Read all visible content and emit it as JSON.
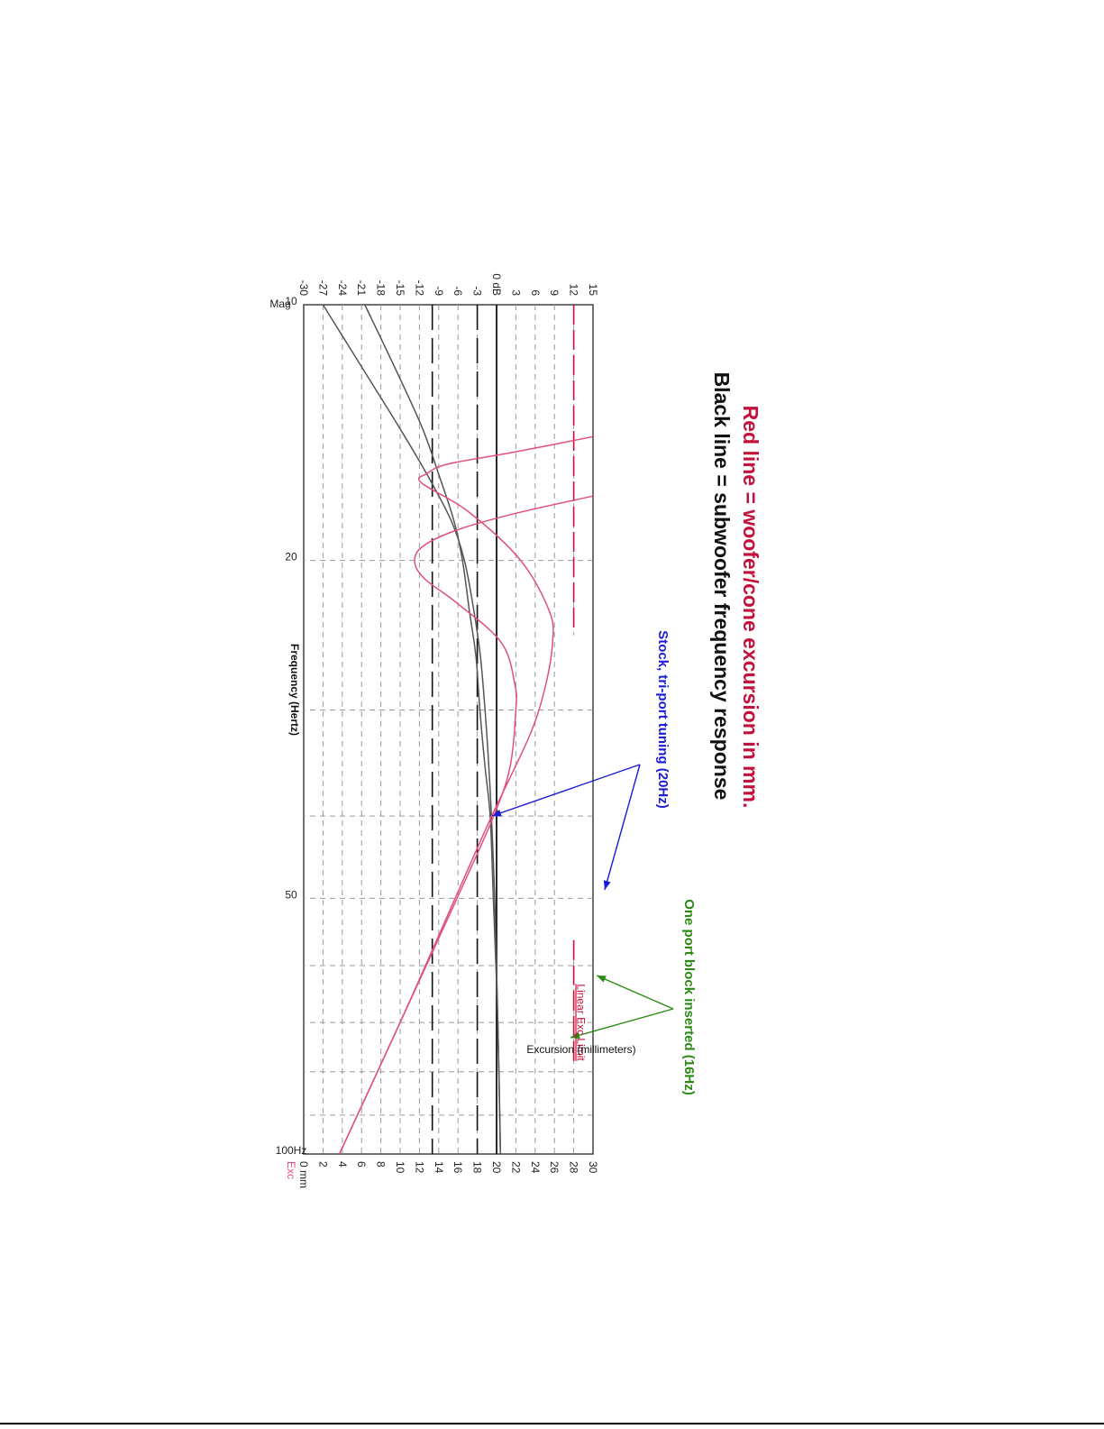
{
  "chart_data": {
    "type": "line",
    "frequency_axis": {
      "label": "Frequency (Hertz)",
      "scale": "log",
      "range": [
        10,
        100
      ],
      "tick_values": [
        10,
        20,
        50,
        100
      ],
      "tick_labels": [
        "10",
        "20",
        "50",
        "100Hz"
      ]
    },
    "magnitude_axis": {
      "range": [
        -30,
        15
      ],
      "unit_label": "Mag",
      "tick_values": [
        15,
        12,
        9,
        6,
        3,
        0,
        -3,
        -6,
        -9,
        -12,
        -15,
        -18,
        -21,
        -24,
        -27,
        -30
      ],
      "tick_labels": [
        "15",
        "12",
        "9",
        "6",
        "3",
        "0 dB",
        "-3",
        "-6",
        "-9",
        "-12",
        "-15",
        "-18",
        "-21",
        "-24",
        "-27",
        "-30"
      ]
    },
    "excursion_axis": {
      "label": "Excursion (millimeters)",
      "range": [
        0,
        30
      ],
      "unit_label": "Exc",
      "tick_values": [
        30,
        28,
        26,
        24,
        22,
        20,
        18,
        16,
        14,
        12,
        10,
        8,
        6,
        4,
        2,
        0
      ],
      "tick_labels": [
        "30",
        "28",
        "26",
        "24",
        "22",
        "20",
        "18",
        "16",
        "14",
        "12",
        "10",
        "8",
        "6",
        "4",
        "2",
        "0 mm"
      ]
    },
    "limit_line": {
      "label": "Linear Exc Limit",
      "excursion": 28
    },
    "reference_lines_db": [
      0,
      -3,
      -10
    ],
    "series": [
      {
        "axis": "magnitude",
        "color": "#555555",
        "points": [
          [
            10,
            -27
          ],
          [
            12,
            -20.5
          ],
          [
            14,
            -15
          ],
          [
            16,
            -10.5
          ],
          [
            18,
            -7
          ],
          [
            20,
            -5
          ],
          [
            23,
            -3.5
          ],
          [
            26,
            -2.5
          ],
          [
            30,
            -1.8
          ],
          [
            35,
            -1.2
          ],
          [
            40,
            -0.8
          ],
          [
            50,
            -0.3
          ],
          [
            70,
            0.2
          ],
          [
            100,
            0.6
          ]
        ]
      },
      {
        "axis": "magnitude",
        "color": "#555555",
        "points": [
          [
            10,
            -20.5
          ],
          [
            12,
            -15.5
          ],
          [
            14,
            -11.5
          ],
          [
            16,
            -8.8
          ],
          [
            18,
            -6.6
          ],
          [
            20,
            -5.3
          ],
          [
            23,
            -4.2
          ],
          [
            26,
            -3.2
          ],
          [
            30,
            -2.6
          ],
          [
            35,
            -1.8
          ],
          [
            40,
            -1
          ],
          [
            50,
            -0.5
          ],
          [
            70,
            0.2
          ],
          [
            100,
            0.6
          ]
        ]
      },
      {
        "axis": "excursion",
        "color": "#e0507a",
        "points": [
          [
            14.3,
            30
          ],
          [
            14.9,
            22
          ],
          [
            15.4,
            15
          ],
          [
            15.8,
            12.8
          ],
          [
            16.2,
            12.2
          ],
          [
            17.5,
            17
          ],
          [
            20,
            22.5
          ],
          [
            23,
            25.5
          ],
          [
            25,
            25.8
          ],
          [
            28,
            25.1
          ],
          [
            32,
            23.5
          ],
          [
            40,
            19.5
          ],
          [
            50,
            15.7
          ],
          [
            70,
            10
          ],
          [
            100,
            3.7
          ]
        ]
      },
      {
        "axis": "excursion",
        "color": "#e0507a",
        "points": [
          [
            16.8,
            30
          ],
          [
            17.6,
            22
          ],
          [
            18.4,
            16
          ],
          [
            19.2,
            12.5
          ],
          [
            20,
            11.5
          ],
          [
            21,
            12.5
          ],
          [
            22.5,
            16
          ],
          [
            25,
            20.5
          ],
          [
            28,
            21.9
          ],
          [
            30,
            22
          ],
          [
            35,
            21.4
          ],
          [
            40,
            19.7
          ],
          [
            50,
            15.9
          ],
          [
            70,
            10
          ],
          [
            100,
            3.7
          ]
        ]
      }
    ],
    "annotations": [
      {
        "text": "Stock, tri-port tuning (20Hz)",
        "color": "#1a1adb"
      },
      {
        "text": "One port block inserted (16Hz)",
        "color": "#2a8a14"
      }
    ],
    "legend_text": [
      {
        "text": "Black line = subwoofer frequency response",
        "color": "#111111"
      },
      {
        "text": "Red line = woofer/cone excursion in mm.",
        "color": "#c4103c"
      }
    ]
  }
}
